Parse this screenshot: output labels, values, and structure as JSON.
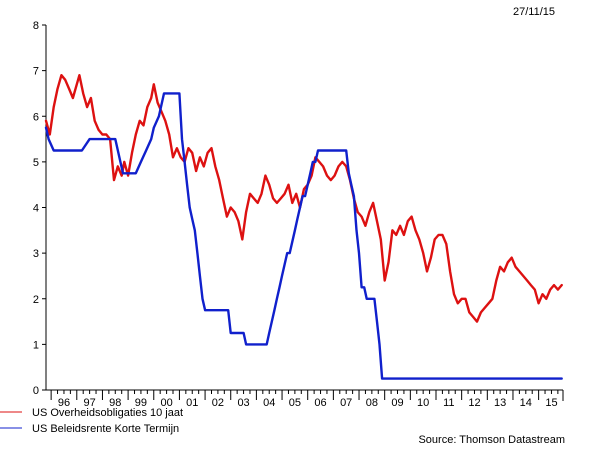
{
  "header": {
    "date": "27/11/15"
  },
  "source": "Source:  Thomson Datastream",
  "chart_data": {
    "type": "line",
    "title": "",
    "xlabel": "",
    "ylabel": "",
    "ylim": [
      0,
      8
    ],
    "xlim": [
      1995.8,
      2015.95
    ],
    "yticks": [
      0,
      1,
      2,
      3,
      4,
      5,
      6,
      7,
      8
    ],
    "xticks": [
      {
        "label": "96",
        "x": 1996.0
      },
      {
        "label": "97",
        "x": 1997.0
      },
      {
        "label": "98",
        "x": 1998.0
      },
      {
        "label": "99",
        "x": 1999.0
      },
      {
        "label": "00",
        "x": 2000.0
      },
      {
        "label": "01",
        "x": 2001.0
      },
      {
        "label": "02",
        "x": 2002.0
      },
      {
        "label": "03",
        "x": 2003.0
      },
      {
        "label": "04",
        "x": 2004.0
      },
      {
        "label": "05",
        "x": 2005.0
      },
      {
        "label": "06",
        "x": 2006.0
      },
      {
        "label": "07",
        "x": 2007.0
      },
      {
        "label": "08",
        "x": 2008.0
      },
      {
        "label": "09",
        "x": 2009.0
      },
      {
        "label": "10",
        "x": 2010.0
      },
      {
        "label": "11",
        "x": 2011.0
      },
      {
        "label": "12",
        "x": 2012.0
      },
      {
        "label": "13",
        "x": 2013.0
      },
      {
        "label": "14",
        "x": 2014.0
      },
      {
        "label": "15",
        "x": 2015.0
      }
    ],
    "grid": false,
    "legend_position": "bottom-left",
    "series": [
      {
        "name": "US Overheidsobligaties 10 jaat",
        "color": "#dd1111",
        "x": [
          1995.8,
          1995.95,
          1996.1,
          1996.25,
          1996.4,
          1996.55,
          1996.7,
          1996.85,
          1997.0,
          1997.1,
          1997.25,
          1997.4,
          1997.55,
          1997.7,
          1997.85,
          1998.0,
          1998.15,
          1998.3,
          1998.45,
          1998.6,
          1998.75,
          1998.85,
          1999.0,
          1999.15,
          1999.3,
          1999.45,
          1999.6,
          1999.75,
          1999.9,
          2000.0,
          2000.15,
          2000.3,
          2000.45,
          2000.6,
          2000.75,
          2000.9,
          2001.05,
          2001.2,
          2001.35,
          2001.5,
          2001.65,
          2001.8,
          2001.95,
          2002.1,
          2002.25,
          2002.4,
          2002.55,
          2002.7,
          2002.85,
          2003.0,
          2003.15,
          2003.3,
          2003.45,
          2003.6,
          2003.75,
          2003.9,
          2004.05,
          2004.2,
          2004.35,
          2004.5,
          2004.65,
          2004.8,
          2004.95,
          2005.1,
          2005.25,
          2005.4,
          2005.55,
          2005.7,
          2005.85,
          2006.0,
          2006.15,
          2006.3,
          2006.45,
          2006.6,
          2006.75,
          2006.9,
          2007.05,
          2007.2,
          2007.35,
          2007.5,
          2007.65,
          2007.8,
          2007.95,
          2008.1,
          2008.25,
          2008.4,
          2008.55,
          2008.7,
          2008.85,
          2009.0,
          2009.15,
          2009.3,
          2009.45,
          2009.6,
          2009.75,
          2009.9,
          2010.05,
          2010.2,
          2010.35,
          2010.5,
          2010.65,
          2010.8,
          2010.95,
          2011.1,
          2011.25,
          2011.4,
          2011.55,
          2011.7,
          2011.85,
          2012.0,
          2012.15,
          2012.3,
          2012.45,
          2012.6,
          2012.75,
          2012.9,
          2013.05,
          2013.2,
          2013.35,
          2013.5,
          2013.65,
          2013.8,
          2013.95,
          2014.1,
          2014.25,
          2014.4,
          2014.55,
          2014.7,
          2014.85,
          2015.0,
          2015.15,
          2015.3,
          2015.45,
          2015.6,
          2015.75,
          2015.9
        ],
        "y": [
          5.9,
          5.6,
          6.2,
          6.6,
          6.9,
          6.8,
          6.6,
          6.4,
          6.7,
          6.9,
          6.5,
          6.2,
          6.4,
          5.9,
          5.7,
          5.6,
          5.6,
          5.5,
          4.6,
          4.9,
          4.7,
          5.0,
          4.7,
          5.2,
          5.6,
          5.9,
          5.8,
          6.2,
          6.4,
          6.7,
          6.3,
          6.1,
          5.9,
          5.6,
          5.1,
          5.3,
          5.1,
          5.0,
          5.3,
          5.2,
          4.8,
          5.1,
          4.9,
          5.2,
          5.3,
          4.9,
          4.6,
          4.2,
          3.8,
          4.0,
          3.9,
          3.7,
          3.3,
          3.9,
          4.3,
          4.2,
          4.1,
          4.3,
          4.7,
          4.5,
          4.2,
          4.1,
          4.2,
          4.3,
          4.5,
          4.1,
          4.3,
          4.0,
          4.4,
          4.5,
          4.7,
          5.1,
          5.0,
          4.9,
          4.7,
          4.6,
          4.7,
          4.9,
          5.0,
          4.9,
          4.6,
          4.2,
          3.9,
          3.8,
          3.6,
          3.9,
          4.1,
          3.7,
          3.3,
          2.4,
          2.8,
          3.5,
          3.4,
          3.6,
          3.4,
          3.7,
          3.8,
          3.5,
          3.3,
          3.0,
          2.6,
          2.9,
          3.3,
          3.4,
          3.4,
          3.2,
          2.6,
          2.1,
          1.9,
          2.0,
          2.0,
          1.7,
          1.6,
          1.5,
          1.7,
          1.8,
          1.9,
          2.0,
          2.4,
          2.7,
          2.6,
          2.8,
          2.9,
          2.7,
          2.6,
          2.5,
          2.4,
          2.3,
          2.2,
          1.9,
          2.1,
          2.0,
          2.2,
          2.3,
          2.2,
          2.3
        ]
      },
      {
        "name": "US Beleidsrente Korte Termijn",
        "color": "#1020cc",
        "x": [
          1995.8,
          1995.9,
          1996.1,
          1996.4,
          1996.8,
          1997.0,
          1997.2,
          1997.5,
          1997.8,
          1998.1,
          1998.3,
          1998.5,
          1998.7,
          1998.8,
          1998.9,
          1999.0,
          1999.3,
          1999.5,
          1999.7,
          1999.9,
          2000.0,
          2000.2,
          2000.4,
          2000.6,
          2000.8,
          2001.0,
          2001.1,
          2001.2,
          2001.3,
          2001.4,
          2001.5,
          2001.6,
          2001.7,
          2001.8,
          2001.9,
          2002.0,
          2002.5,
          2002.9,
          2003.0,
          2003.4,
          2003.5,
          2003.6,
          2004.0,
          2004.4,
          2004.5,
          2004.6,
          2004.7,
          2004.8,
          2004.9,
          2005.0,
          2005.1,
          2005.2,
          2005.3,
          2005.4,
          2005.5,
          2005.6,
          2005.7,
          2005.8,
          2005.9,
          2006.0,
          2006.1,
          2006.2,
          2006.3,
          2006.4,
          2006.5,
          2007.0,
          2007.5,
          2007.6,
          2007.7,
          2007.8,
          2007.9,
          2008.0,
          2008.1,
          2008.2,
          2008.3,
          2008.4,
          2008.5,
          2008.6,
          2008.7,
          2008.8,
          2008.9,
          2009.0,
          2010.0,
          2011.0,
          2012.0,
          2013.0,
          2014.0,
          2015.0,
          2015.9
        ],
        "y": [
          5.75,
          5.5,
          5.25,
          5.25,
          5.25,
          5.25,
          5.25,
          5.5,
          5.5,
          5.5,
          5.5,
          5.5,
          5.0,
          4.75,
          4.75,
          4.75,
          4.75,
          5.0,
          5.25,
          5.5,
          5.75,
          6.0,
          6.5,
          6.5,
          6.5,
          6.5,
          5.5,
          5.0,
          4.5,
          4.0,
          3.75,
          3.5,
          3.0,
          2.5,
          2.0,
          1.75,
          1.75,
          1.75,
          1.25,
          1.25,
          1.25,
          1.0,
          1.0,
          1.0,
          1.25,
          1.5,
          1.75,
          2.0,
          2.25,
          2.5,
          2.75,
          3.0,
          3.0,
          3.25,
          3.5,
          3.75,
          4.0,
          4.25,
          4.25,
          4.5,
          4.75,
          5.0,
          5.0,
          5.25,
          5.25,
          5.25,
          5.25,
          4.75,
          4.5,
          4.25,
          3.5,
          3.0,
          2.25,
          2.25,
          2.0,
          2.0,
          2.0,
          2.0,
          1.5,
          1.0,
          0.25,
          0.25,
          0.25,
          0.25,
          0.25,
          0.25,
          0.25,
          0.25,
          0.25
        ]
      }
    ]
  }
}
